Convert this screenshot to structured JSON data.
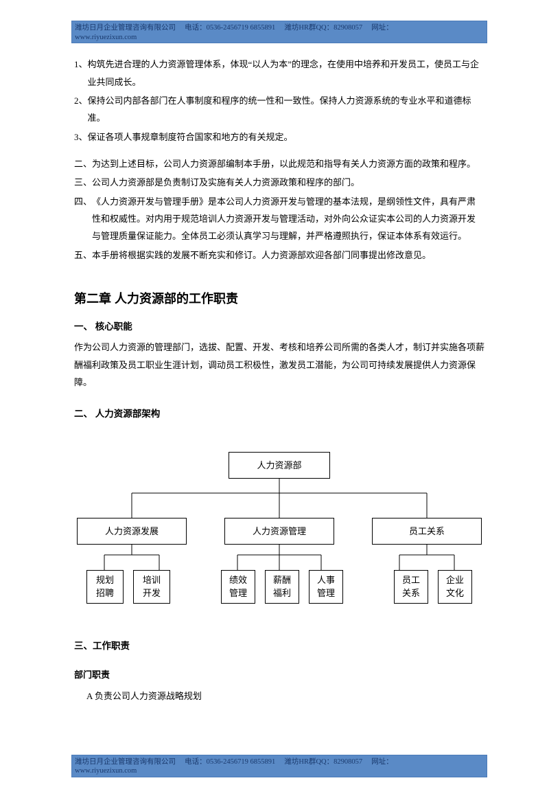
{
  "header": {
    "company": "潍坊日月企业管理咨询有限公司",
    "phone_label": "电话：",
    "phone": "0536-2456719 6855891",
    "qq_label": "潍坊HR群QQ：",
    "qq": "82908057",
    "url_label": "网址：",
    "url": "www.riyuezixun.com"
  },
  "section1": {
    "items": [
      {
        "num": "1、",
        "text": "构筑先进合理的人力资源管理体系，体现“以人为本”的理念，在使用中培养和开发员工，使员工与企业共同成长。"
      },
      {
        "num": "2、",
        "text": "保持公司内部各部门在人事制度和程序的统一性和一致性。保持人力资源系统的专业水平和道德标准。"
      },
      {
        "num": "3、",
        "text": "保证各项人事规章制度符合国家和地方的有关规定。"
      }
    ]
  },
  "section2": {
    "items": [
      {
        "num": "二、",
        "text": "为达到上述目标，公司人力资源部编制本手册，以此规范和指导有关人力资源方面的政策和程序。"
      },
      {
        "num": "三、",
        "text": "公司人力资源部是负责制订及实施有关人力资源政策和程序的部门。"
      },
      {
        "num": "四、",
        "text": "《人力资源开发与管理手册》是本公司人力资源开发与管理的基本法规，是纲领性文件，具有严肃性和权威性。对内用于规范培训人力资源开发与管理活动，对外向公众证实本公司的人力资源开发与管理质量保证能力。全体员工必须认真学习与理解，并严格遵照执行，保证本体系有效运行。"
      },
      {
        "num": "五、",
        "text": "本手册将根据实践的发展不断充实和修订。人力资源部欢迎各部门同事提出修改意见。"
      }
    ]
  },
  "chapter2": {
    "title": "第二章  人力资源部的工作职责",
    "sec1_title": "一、  核心职能",
    "sec1_body": "作为公司人力资源的管理部门，选拔、配置、开发、考核和培养公司所需的各类人才，制订并实施各项薪酬福利政策及员工职业生涯计划，调动员工积极性，激发员工潜能，为公司可持续发展提供人力资源保障。",
    "sec2_title": "二、  人力资源部架构",
    "sec3_title": "三、工作职责",
    "sub_heading": "部门职责",
    "a_item": "A    负责公司人力资源战略规划"
  },
  "org": {
    "root": "人力资源部",
    "mids": [
      "人力资源发展",
      "人力资源管理",
      "员工关系"
    ],
    "leaves": [
      [
        "规划招聘",
        "培训开发"
      ],
      [
        "绩效管理",
        "薪酬福利",
        "人事管理"
      ],
      [
        "员工关系",
        "企业文化"
      ]
    ],
    "box_border": "#000000",
    "line_color": "#000000"
  },
  "colors": {
    "header_bg": "#5a8ac6",
    "header_text": "#1a3a6e",
    "body_text": "#000000"
  }
}
